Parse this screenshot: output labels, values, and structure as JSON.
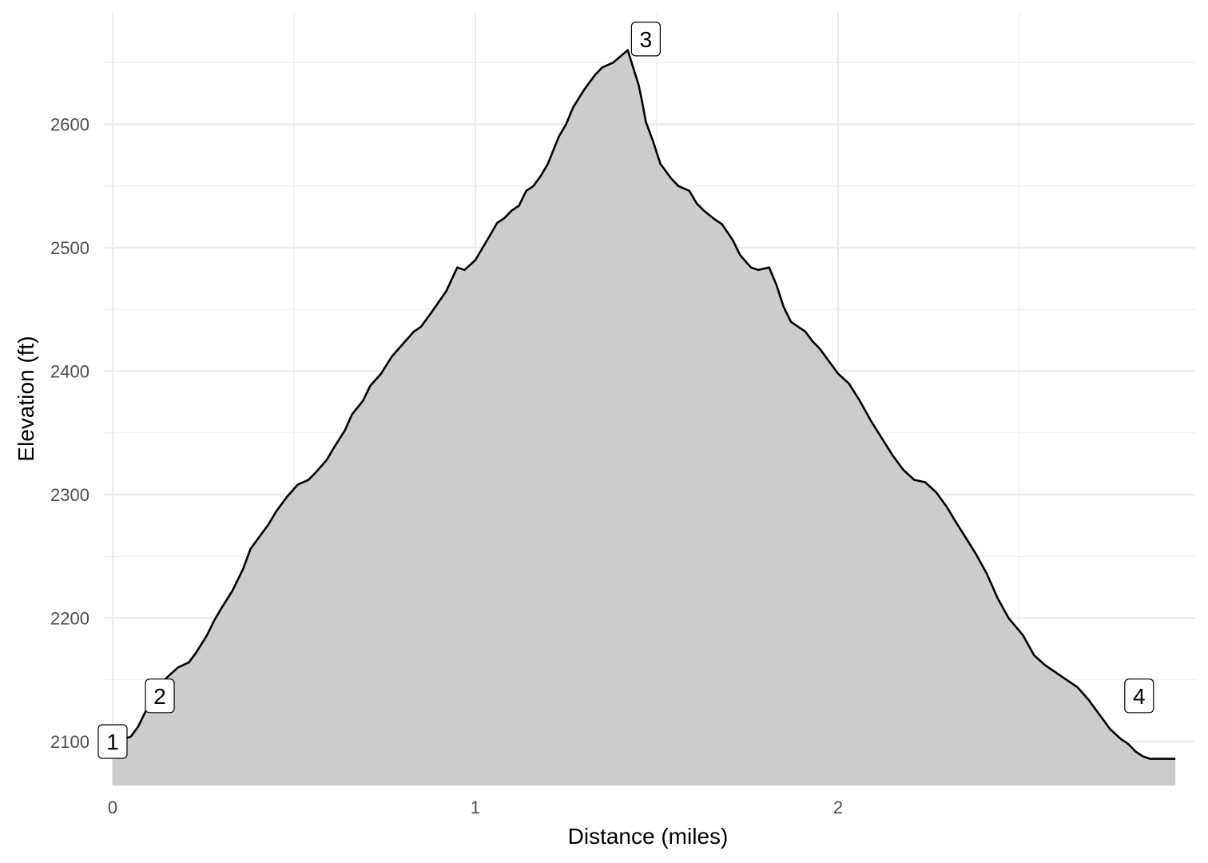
{
  "chart_data": {
    "type": "area",
    "title": "",
    "xlabel": "Distance (miles)",
    "ylabel": "Elevation (ft)",
    "xlim": [
      -0.02,
      3.0
    ],
    "ylim": [
      2065,
      2675
    ],
    "x_ticks": [
      0,
      1,
      2
    ],
    "y_ticks": [
      2100,
      2200,
      2300,
      2400,
      2500,
      2600
    ],
    "grid": true,
    "legend": "none",
    "fill_color": "#cccccc",
    "line_color": "#000000",
    "grid_color": "#ebebeb",
    "profile": {
      "x": [
        0.0,
        0.01,
        0.03,
        0.05,
        0.07,
        0.09,
        0.1,
        0.13,
        0.15,
        0.18,
        0.21,
        0.23,
        0.26,
        0.28,
        0.3,
        0.33,
        0.36,
        0.38,
        0.41,
        0.43,
        0.45,
        0.48,
        0.51,
        0.54,
        0.56,
        0.59,
        0.61,
        0.64,
        0.66,
        0.69,
        0.71,
        0.74,
        0.77,
        0.8,
        0.83,
        0.85,
        0.88,
        0.92,
        0.95,
        0.97,
        1.0,
        1.02,
        1.04,
        1.06,
        1.08,
        1.1,
        1.12,
        1.14,
        1.16,
        1.18,
        1.2,
        1.23,
        1.25,
        1.27,
        1.3,
        1.33,
        1.35,
        1.38,
        1.4,
        1.42,
        1.45,
        1.46,
        1.47,
        1.49,
        1.51,
        1.54,
        1.56,
        1.59,
        1.61,
        1.63,
        1.66,
        1.68,
        1.71,
        1.73,
        1.76,
        1.78,
        1.81,
        1.83,
        1.85,
        1.87,
        1.89,
        1.91,
        1.93,
        1.95,
        1.97,
        2.0,
        2.03,
        2.06,
        2.09,
        2.12,
        2.15,
        2.18,
        2.21,
        2.24,
        2.27,
        2.3,
        2.32,
        2.35,
        2.38,
        2.41,
        2.44,
        2.47,
        2.51,
        2.54,
        2.57,
        2.6,
        2.63,
        2.66,
        2.69,
        2.72,
        2.75,
        2.78,
        2.8,
        2.82,
        2.84,
        2.86,
        2.89,
        2.91,
        2.93
      ],
      "y": [
        2092,
        2096,
        2102,
        2104,
        2112,
        2124,
        2130,
        2146,
        2152,
        2160,
        2164,
        2172,
        2186,
        2198,
        2208,
        2222,
        2240,
        2256,
        2268,
        2276,
        2286,
        2298,
        2308,
        2312,
        2318,
        2328,
        2338,
        2352,
        2365,
        2376,
        2388,
        2398,
        2412,
        2422,
        2432,
        2436,
        2448,
        2465,
        2484,
        2482,
        2490,
        2500,
        2510,
        2520,
        2524,
        2530,
        2534,
        2546,
        2550,
        2558,
        2568,
        2590,
        2600,
        2614,
        2628,
        2640,
        2646,
        2650,
        2655,
        2660,
        2632,
        2618,
        2602,
        2586,
        2568,
        2556,
        2550,
        2546,
        2536,
        2530,
        2523,
        2519,
        2506,
        2494,
        2484,
        2482,
        2484,
        2470,
        2452,
        2440,
        2436,
        2432,
        2424,
        2418,
        2410,
        2398,
        2390,
        2376,
        2360,
        2346,
        2332,
        2320,
        2312,
        2310,
        2302,
        2290,
        2280,
        2266,
        2252,
        2236,
        2216,
        2200,
        2186,
        2170,
        2162,
        2156,
        2150,
        2144,
        2134,
        2122,
        2110,
        2102,
        2098,
        2092,
        2088,
        2086,
        2086,
        2086,
        2086
      ]
    },
    "markers": [
      {
        "label": "1",
        "x": 0.0,
        "y": 2100
      },
      {
        "label": "2",
        "x": 0.13,
        "y": 2137
      },
      {
        "label": "3",
        "x": 1.47,
        "y": 2669
      },
      {
        "label": "4",
        "x": 2.83,
        "y": 2137
      }
    ]
  }
}
